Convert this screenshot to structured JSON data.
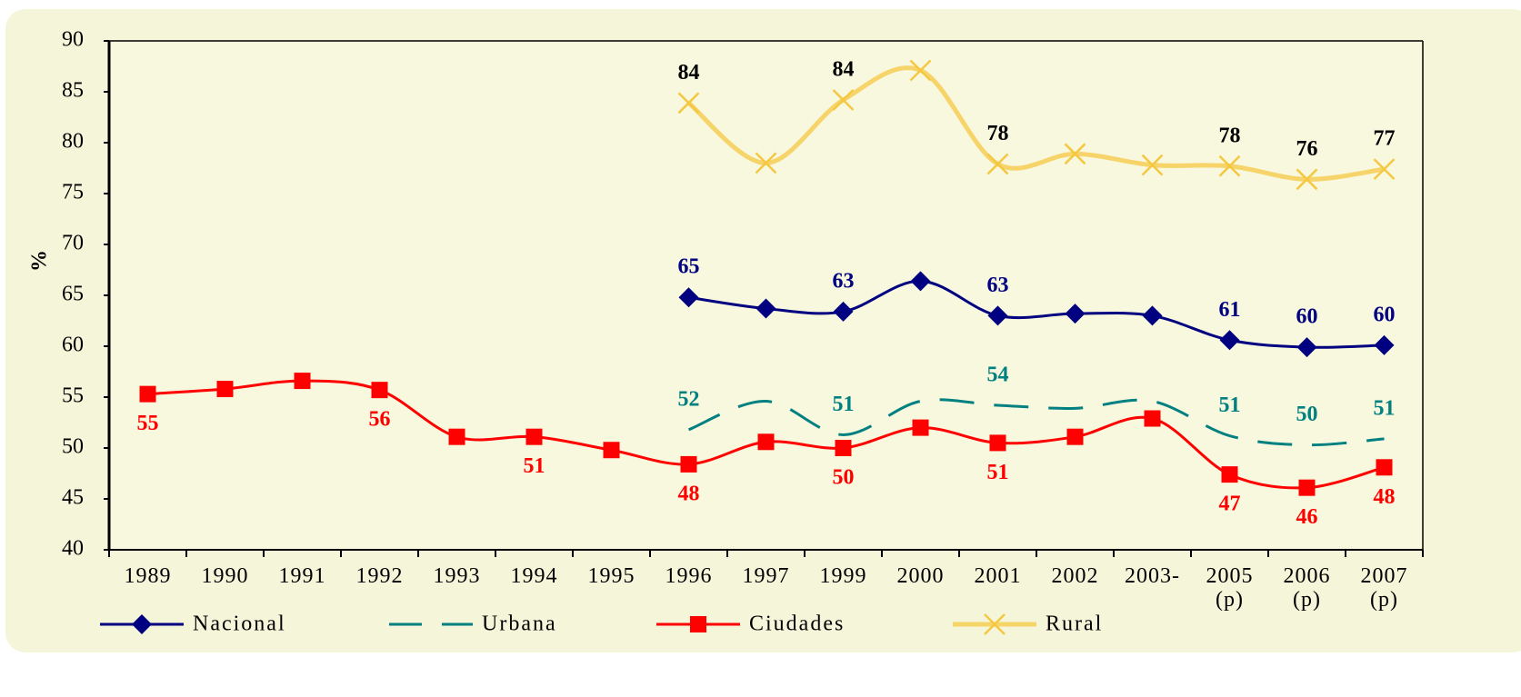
{
  "chart_data": {
    "type": "line",
    "y_label": "%",
    "categories": [
      "1989",
      "1990",
      "1991",
      "1992",
      "1993",
      "1994",
      "1995",
      "1996",
      "1997",
      "1999",
      "2000",
      "2001",
      "2002",
      "2003-",
      "2005\n(p)",
      "2006\n(p)",
      "2007\n(p)"
    ],
    "ylim": [
      40,
      90
    ],
    "yticks": [
      40,
      45,
      50,
      55,
      60,
      65,
      70,
      75,
      80,
      85,
      90
    ],
    "grid": false,
    "legend": "bottom",
    "series": [
      {
        "name": "Nacional",
        "color": "#000080",
        "marker": "diamond",
        "dash": false,
        "label_color": "#000080",
        "label_position": "above",
        "values": [
          null,
          null,
          null,
          null,
          null,
          null,
          null,
          64.8,
          63.7,
          63.4,
          66.4,
          63.0,
          63.2,
          63.0,
          60.6,
          59.9,
          60.1
        ],
        "value_labels": [
          null,
          null,
          null,
          null,
          null,
          null,
          null,
          "65",
          null,
          "63",
          null,
          "63",
          null,
          null,
          "61",
          "60",
          "60"
        ]
      },
      {
        "name": "Urbana",
        "color": "#008080",
        "marker": "none",
        "dash": true,
        "label_color": "#008080",
        "label_position": "above",
        "values": [
          null,
          null,
          null,
          null,
          null,
          null,
          null,
          51.8,
          54.6,
          51.3,
          54.6,
          54.2,
          53.9,
          54.6,
          51.2,
          50.3,
          50.9
        ],
        "value_labels": [
          null,
          null,
          null,
          null,
          null,
          null,
          null,
          "52",
          null,
          "51",
          null,
          "54",
          null,
          null,
          "51",
          "50",
          "51"
        ]
      },
      {
        "name": "Ciudades",
        "color": "#ff0000",
        "marker": "square",
        "dash": false,
        "label_color": "#ff0000",
        "label_position": "below",
        "values": [
          55.3,
          55.8,
          56.6,
          55.7,
          51.1,
          51.1,
          49.8,
          48.4,
          50.6,
          50.0,
          52.0,
          50.5,
          51.1,
          52.9,
          47.4,
          46.1,
          48.1
        ],
        "value_labels": [
          "55",
          null,
          null,
          "56",
          null,
          "51",
          null,
          "48",
          null,
          "50",
          null,
          "51",
          null,
          null,
          "47",
          "46",
          "48"
        ]
      },
      {
        "name": "Rural",
        "color": "#f5c842",
        "marker": "x",
        "dash": false,
        "label_color": "#000000",
        "label_position": "above",
        "values": [
          null,
          null,
          null,
          null,
          null,
          null,
          null,
          83.9,
          78.0,
          84.2,
          87.1,
          77.9,
          78.9,
          77.8,
          77.7,
          76.4,
          77.4
        ],
        "value_labels": [
          null,
          null,
          null,
          null,
          null,
          null,
          null,
          "84",
          null,
          "84",
          null,
          "78",
          null,
          null,
          "78",
          "76",
          "77"
        ]
      }
    ]
  }
}
